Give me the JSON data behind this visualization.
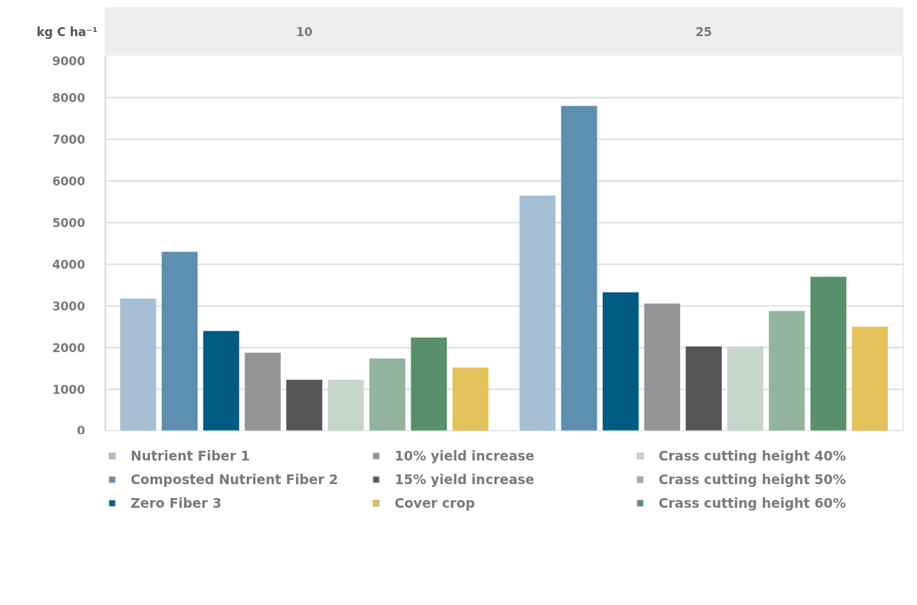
{
  "chart_data": {
    "type": "bar",
    "ylabel": "kg C ha⁻¹",
    "categories": [
      "10",
      "25"
    ],
    "series": [
      {
        "name": "Nutrient Fiber 1",
        "color": "#a7bfd4",
        "values": [
          3180,
          5650
        ]
      },
      {
        "name": "Composted Nutrient Fiber 2",
        "color": "#5d90b0",
        "values": [
          4300,
          7800
        ]
      },
      {
        "name": "Zero Fiber 3",
        "color": "#005b82",
        "values": [
          2400,
          3330
        ]
      },
      {
        "name": "10% yield increase",
        "color": "#959598",
        "values": [
          1880,
          3060
        ]
      },
      {
        "name": "15% yield increase",
        "color": "#555557",
        "values": [
          1230,
          2030
        ]
      },
      {
        "name": "Crass cutting height 40%",
        "color": "#c5d6cb",
        "values": [
          1230,
          2030
        ]
      },
      {
        "name": "Crass cutting height 50%",
        "color": "#93b59f",
        "values": [
          1740,
          2880
        ]
      },
      {
        "name": "Crass cutting height 60%",
        "color": "#5a8f6e",
        "values": [
          2240,
          3700
        ]
      },
      {
        "name": "Cover crop",
        "color": "#e4c15b",
        "values": [
          1520,
          2500
        ]
      }
    ],
    "ylim": [
      0,
      9000
    ],
    "yticks": [
      0,
      1000,
      2000,
      3000,
      4000,
      5000,
      6000,
      7000,
      8000,
      9000
    ],
    "grid": "y",
    "legend": "bottom"
  }
}
